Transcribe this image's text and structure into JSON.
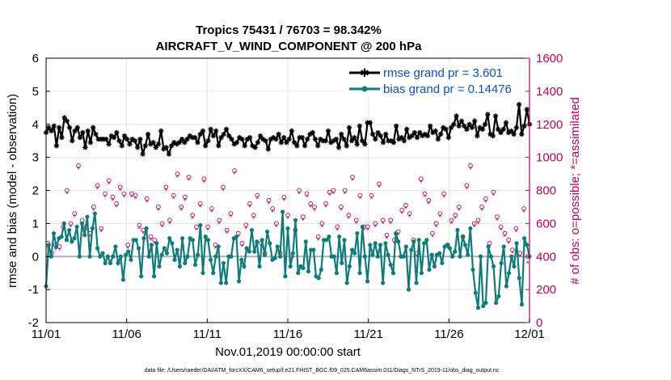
{
  "colors": {
    "rmse": "#000000",
    "bias": "#0f7c7c",
    "obs": "#c4005a",
    "zero_line": "#b0b0b0",
    "grid": "#e6e6e6",
    "legend_text": "#0a4fd6"
  },
  "chart_data": {
    "type": "line",
    "title": "Tropics 75431 / 76703 = 98.342%",
    "subtitle": "AIRCRAFT_V_WIND_COMPONENT @ 200 hPa",
    "xlabel": "Nov.01,2019 00:00:00 start",
    "ylabel": "rmse and bias (model - observation)",
    "ylabel_right": "# of obs: o=possible; *=assimilated",
    "xlim": [
      0,
      30
    ],
    "ylim": [
      -2,
      6
    ],
    "ylim_right": [
      0,
      1600
    ],
    "x_tick_values": [
      0,
      5,
      10,
      15,
      20,
      25,
      30
    ],
    "x_tick_labels": [
      "11/01",
      "11/06",
      "11/11",
      "11/16",
      "11/21",
      "11/26",
      "12/01"
    ],
    "y_ticks": [
      -2,
      -1,
      0,
      1,
      2,
      3,
      4,
      5,
      6
    ],
    "y_ticks_right": [
      0,
      200,
      400,
      600,
      800,
      1000,
      1200,
      1400,
      1600
    ],
    "legend_location": "top-right",
    "grid": true,
    "series": [
      {
        "name": "rmse grand pr = 3.601",
        "axis": "left",
        "values": [
          3.75,
          3.9,
          3.8,
          3.95,
          3.35,
          3.9,
          3.6,
          4.2,
          4.1,
          3.9,
          3.5,
          3.8,
          3.9,
          3.6,
          3.75,
          3.3,
          3.8,
          3.45,
          3.9,
          3.7,
          3.55,
          3.55,
          3.55,
          3.55,
          3.4,
          3.65,
          3.6,
          3.75,
          3.5,
          3.35,
          3.65,
          3.55,
          3.4,
          3.55,
          3.5,
          3.3,
          3.55,
          3.1,
          3.35,
          3.7,
          3.4,
          3.45,
          3.3,
          3.4,
          3.8,
          3.25,
          3.3,
          3.1,
          3.35,
          3.45,
          3.4,
          3.45,
          3.55,
          3.45,
          3.55,
          3.65,
          3.6,
          3.6,
          3.45,
          3.7,
          3.8,
          3.35,
          3.5,
          3.85,
          3.65,
          3.8,
          3.35,
          3.6,
          3.7,
          3.85,
          3.65,
          3.55,
          3.4,
          3.45,
          3.6,
          3.55,
          3.35,
          3.55,
          3.6,
          3.35,
          3.3,
          3.45,
          3.65,
          3.55,
          3.5,
          3.25,
          3.55,
          3.6,
          3.55,
          3.7,
          3.45,
          3.6,
          3.45,
          3.55,
          3.8,
          3.45,
          3.35,
          3.6,
          3.6,
          3.35,
          3.55,
          3.7,
          3.75,
          3.55,
          3.35,
          3.55,
          3.5,
          3.5,
          3.8,
          3.45,
          3.5,
          3.55,
          3.3,
          3.7,
          3.55,
          3.35,
          3.9,
          3.5,
          3.6,
          3.4,
          3.95,
          3.5,
          3.4,
          4.05,
          4.05,
          3.7,
          3.55,
          3.75,
          3.65,
          3.45,
          3.7,
          3.5,
          3.5,
          3.45,
          3.95,
          3.55,
          3.6,
          3.5,
          3.85,
          3.6,
          3.65,
          3.75,
          3.6,
          3.75,
          3.65,
          3.7,
          3.65,
          3.95,
          3.75,
          3.8,
          3.55,
          3.7,
          3.9,
          3.85,
          3.6,
          3.9,
          4.0,
          4.25,
          3.95,
          4.1,
          3.95,
          3.85,
          4.0,
          3.9,
          4.1,
          3.65,
          3.9,
          3.85,
          4.0,
          4.3,
          3.7,
          3.65,
          4.25,
          3.85,
          3.75,
          3.85,
          4.05,
          3.75,
          3.8,
          3.7,
          3.9,
          4.6,
          3.7,
          3.95,
          4.45,
          4.0
        ]
      },
      {
        "name": "bias grand pr = 0.14476",
        "axis": "left",
        "values": [
          -0.9,
          0.35,
          0.0,
          0.7,
          0.3,
          0.55,
          0.6,
          1.0,
          0.5,
          0.8,
          0.45,
          0.55,
          0.9,
          0.0,
          1.0,
          0.65,
          1.2,
          0.0,
          0.85,
          1.3,
          0.25,
          0.0,
          0.1,
          -0.2,
          0.0,
          -0.2,
          0.0,
          0.3,
          -0.2,
          0.0,
          -0.7,
          0.05,
          0.15,
          -0.1,
          0.5,
          0.5,
          0.25,
          -0.6,
          0.55,
          0.85,
          0.0,
          0.35,
          -0.6,
          0.4,
          -0.3,
          0.05,
          0.25,
          0.1,
          0.55,
          0.4,
          -0.1,
          0.2,
          -0.3,
          0.55,
          -0.2,
          0.0,
          0.55,
          0.5,
          -0.25,
          0.05,
          0.95,
          -0.5,
          0.6,
          0.5,
          -0.1,
          -0.5,
          0.0,
          0.3,
          -0.8,
          -0.2,
          -0.8,
          0.0,
          0.0,
          0.55,
          0.6,
          -0.75,
          -0.1,
          -0.3,
          0.25,
          0.15,
          0.8,
          0.15,
          0.45,
          -0.3,
          0.5,
          0.05,
          0.75,
          0.4,
          -0.1,
          -0.05,
          0.3,
          0.0,
          1.35,
          -0.6,
          0.85,
          -0.3,
          0.1,
          1.1,
          -0.5,
          -0.3,
          -0.35,
          0.45,
          -0.45,
          0.2,
          0.2,
          -0.6,
          -0.65,
          -0.4,
          0.5,
          0.5,
          0.6,
          0.0,
          0.0,
          -0.5,
          0.6,
          -0.2,
          0.5,
          -0.8,
          -0.3,
          0.2,
          0.1,
          0.7,
          -0.5,
          0.9,
          0.0,
          -0.75,
          0.35,
          0.05,
          0.4,
          0.0,
          0.35,
          -0.8,
          0.4,
          0.05,
          -0.25,
          -0.5,
          0.7,
          0.45,
          0.0,
          0.0,
          0.3,
          -1.0,
          0.2,
          0.45,
          -0.8,
          0.5,
          -0.5,
          0.4,
          0.5,
          -0.4,
          0.05,
          -0.3,
          0.05,
          0.1,
          -0.2,
          0.3,
          0.35,
          0.25,
          0.0,
          0.15,
          0.8,
          0.0,
          0.6,
          0.35,
          0.05,
          0.85,
          -0.4,
          -1.1,
          -1.55,
          0.0,
          -1.5,
          -1.4,
          0.3,
          0.0,
          -0.3,
          -1.4,
          -1.2,
          -0.2,
          0.3,
          -0.9,
          -0.5,
          0.0,
          -0.3,
          0.4,
          -0.65,
          -1.45,
          0.55,
          0.35,
          0.0
        ]
      },
      {
        "name": "obs possible",
        "axis": "right",
        "values": [
          480,
          420,
          470,
          460,
          580,
          800,
          600,
          660,
          950,
          620,
          580,
          540,
          700,
          830,
          570,
          780,
          860,
          760,
          720,
          820,
          780,
          470,
          780,
          770,
          590,
          560,
          750,
          520,
          500,
          700,
          600,
          820,
          620,
          770,
          900,
          700,
          760,
          880,
          650,
          580,
          720,
          870,
          580,
          690,
          470,
          620,
          820,
          560,
          660,
          920,
          540,
          480,
          590,
          720,
          650,
          770,
          480,
          420,
          740,
          690,
          600,
          420,
          760,
          650,
          400,
          560,
          800,
          640,
          780,
          720,
          700,
          520,
          600,
          720,
          790,
          800,
          580,
          700,
          800,
          650,
          880,
          620,
          770,
          580,
          580,
          770,
          600,
          840,
          620,
          530,
          620,
          500,
          550,
          680,
          710,
          660,
          500,
          420,
          870,
          780,
          740,
          540,
          600,
          660,
          780,
          470,
          620,
          650,
          700,
          520,
          830,
          950,
          600,
          620,
          700,
          750,
          480,
          790,
          640,
          580,
          540,
          500,
          440,
          570,
          420,
          690,
          400
        ]
      },
      {
        "name": "obs assimilated",
        "axis": "right",
        "values": [
          450,
          400,
          440,
          440,
          560,
          780,
          580,
          640,
          930,
          600,
          560,
          520,
          680,
          810,
          550,
          760,
          840,
          740,
          700,
          800,
          760,
          450,
          760,
          750,
          570,
          540,
          730,
          500,
          480,
          680,
          580,
          800,
          600,
          750,
          880,
          680,
          740,
          860,
          630,
          560,
          700,
          850,
          560,
          670,
          450,
          600,
          800,
          540,
          640,
          900,
          520,
          460,
          570,
          700,
          630,
          750,
          460,
          400,
          720,
          670,
          580,
          400,
          740,
          630,
          380,
          540,
          780,
          620,
          760,
          700,
          680,
          500,
          580,
          700,
          770,
          780,
          560,
          680,
          780,
          630,
          860,
          600,
          750,
          560,
          560,
          750,
          580,
          820,
          600,
          510,
          600,
          480,
          530,
          660,
          690,
          640,
          480,
          400,
          850,
          760,
          720,
          520,
          580,
          640,
          760,
          450,
          600,
          630,
          680,
          500,
          810,
          930,
          580,
          600,
          680,
          730,
          460,
          770,
          620,
          560,
          520,
          480,
          420,
          550,
          400,
          670,
          360
        ]
      }
    ]
  },
  "footer_text": "data file: /Users/raeder/DAI/ATM_forcXX/CAM6_setup/f.e21.FHIST_BGC.f09_025.CAM6assim.011/Diags_NTrS_2019-11/obs_diag_output.nc"
}
